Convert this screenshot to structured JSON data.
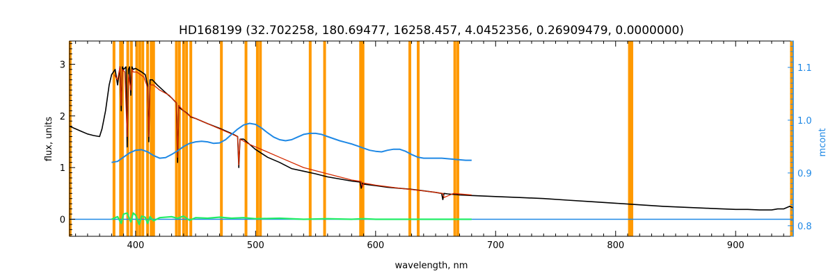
{
  "chart_data": {
    "type": "line",
    "title": "HD168199    (32.702258, 180.69477, 16258.457, 4.0452356, 0.26909479, 0.0000000)",
    "xlabel": "wavelength, nm",
    "ylabel": "flux, units",
    "y2label": "mcont",
    "xlim": [
      345,
      948
    ],
    "ylim": [
      -0.33,
      3.45
    ],
    "y2lim": [
      0.78,
      1.15
    ],
    "xticks": [
      400,
      500,
      600,
      700,
      800,
      900
    ],
    "yticks": [
      0,
      1,
      2,
      3
    ],
    "y2ticks": [
      0.8,
      0.9,
      1.0,
      1.1
    ],
    "grid": false,
    "colors": {
      "observed": "#000000",
      "model": "#d42a00",
      "mcont": "#1e88e5",
      "residual": "#22ee66",
      "mask": "#ff9900",
      "zero_line": "#1e88e5"
    },
    "mask_lines": [
      345.5,
      382,
      387.5,
      389,
      393.5,
      396.5,
      401,
      403.5,
      406,
      410,
      413,
      415,
      434,
      436.5,
      440,
      442.5,
      446,
      471.5,
      492,
      501.5,
      504,
      545.5,
      557.5,
      587.5,
      589.5,
      628.5,
      635.5,
      666,
      668.5,
      811.5,
      813.5,
      946.5
    ],
    "series": [
      {
        "key": "observed",
        "x": [
          345,
          350,
          355,
          360,
          365,
          370,
          372,
          375,
          378,
          380,
          383,
          385,
          387,
          388,
          389,
          390,
          392,
          393,
          394,
          395,
          396,
          397,
          398,
          400,
          403,
          405,
          408,
          410,
          411,
          412,
          414,
          418,
          425,
          430,
          434,
          435,
          436,
          437,
          440,
          443,
          446,
          450,
          460,
          470,
          480,
          485,
          486,
          487,
          490,
          495,
          500,
          510,
          520,
          530,
          540,
          550,
          560,
          570,
          580,
          587,
          588,
          589,
          590,
          600,
          610,
          620,
          630,
          640,
          650,
          655,
          656,
          657,
          660,
          670,
          680,
          700,
          720,
          740,
          760,
          780,
          800,
          820,
          840,
          860,
          880,
          900,
          910,
          920,
          930,
          935,
          940,
          945,
          948
        ],
        "y": [
          1.8,
          1.75,
          1.7,
          1.65,
          1.62,
          1.6,
          1.75,
          2.1,
          2.6,
          2.8,
          2.9,
          2.6,
          2.95,
          2.1,
          2.95,
          2.9,
          2.95,
          1.4,
          2.9,
          2.95,
          2.4,
          2.95,
          2.9,
          2.92,
          2.88,
          2.85,
          2.8,
          2.6,
          1.5,
          2.7,
          2.7,
          2.6,
          2.45,
          2.35,
          2.25,
          1.1,
          2.2,
          2.15,
          2.1,
          2.05,
          1.98,
          1.95,
          1.85,
          1.76,
          1.66,
          1.6,
          1.0,
          1.55,
          1.55,
          1.45,
          1.35,
          1.2,
          1.1,
          0.98,
          0.93,
          0.88,
          0.82,
          0.78,
          0.74,
          0.72,
          0.6,
          0.7,
          0.68,
          0.65,
          0.62,
          0.6,
          0.58,
          0.55,
          0.52,
          0.5,
          0.38,
          0.5,
          0.49,
          0.47,
          0.46,
          0.44,
          0.42,
          0.4,
          0.37,
          0.34,
          0.31,
          0.28,
          0.25,
          0.23,
          0.21,
          0.19,
          0.19,
          0.18,
          0.18,
          0.2,
          0.2,
          0.25,
          0.22
        ]
      },
      {
        "key": "model",
        "x": [
          382,
          385,
          387,
          388,
          389,
          391,
          393,
          394,
          396,
          397,
          398,
          401,
          404,
          407,
          410,
          411,
          412,
          415,
          420,
          428,
          434,
          435,
          436,
          440,
          445,
          450,
          460,
          470,
          480,
          485,
          486,
          487,
          495,
          505,
          520,
          540,
          560,
          580,
          588,
          589,
          590,
          600,
          620,
          640,
          650,
          656,
          657,
          665,
          675,
          680
        ],
        "y": [
          2.8,
          2.7,
          2.95,
          2.2,
          2.9,
          2.85,
          1.6,
          2.8,
          2.5,
          2.9,
          2.85,
          2.85,
          2.8,
          2.75,
          2.55,
          1.6,
          2.6,
          2.6,
          2.5,
          2.4,
          2.25,
          1.2,
          2.2,
          2.1,
          2.0,
          1.95,
          1.85,
          1.75,
          1.65,
          1.6,
          1.05,
          1.55,
          1.45,
          1.35,
          1.2,
          1.0,
          0.88,
          0.76,
          0.73,
          0.62,
          0.7,
          0.66,
          0.6,
          0.55,
          0.52,
          0.5,
          0.42,
          0.5,
          0.48,
          0.47
        ]
      },
      {
        "key": "mcont",
        "axis": "right",
        "x": [
          380,
          385,
          390,
          395,
          400,
          405,
          410,
          415,
          420,
          425,
          430,
          435,
          440,
          445,
          450,
          455,
          460,
          465,
          470,
          475,
          480,
          485,
          490,
          495,
          500,
          505,
          510,
          515,
          520,
          525,
          530,
          535,
          540,
          545,
          550,
          555,
          560,
          565,
          570,
          575,
          580,
          585,
          590,
          595,
          600,
          605,
          610,
          615,
          620,
          625,
          630,
          635,
          640,
          645,
          650,
          655,
          660,
          665,
          670,
          675,
          680
        ],
        "y": [
          0.92,
          0.922,
          0.93,
          0.938,
          0.943,
          0.944,
          0.94,
          0.933,
          0.928,
          0.929,
          0.935,
          0.942,
          0.95,
          0.956,
          0.959,
          0.96,
          0.959,
          0.956,
          0.957,
          0.963,
          0.973,
          0.983,
          0.991,
          0.994,
          0.992,
          0.985,
          0.976,
          0.968,
          0.963,
          0.961,
          0.963,
          0.968,
          0.973,
          0.975,
          0.975,
          0.973,
          0.969,
          0.965,
          0.961,
          0.958,
          0.955,
          0.951,
          0.947,
          0.943,
          0.941,
          0.94,
          0.943,
          0.945,
          0.945,
          0.941,
          0.935,
          0.93,
          0.928,
          0.928,
          0.928,
          0.928,
          0.927,
          0.926,
          0.925,
          0.924,
          0.924
        ]
      },
      {
        "key": "residual",
        "x": [
          380,
          385,
          388,
          390,
          393,
          396,
          398,
          400,
          403,
          405,
          408,
          410,
          412,
          415,
          420,
          430,
          435,
          440,
          445,
          450,
          460,
          470,
          480,
          490,
          495,
          500,
          520,
          540,
          560,
          580,
          590,
          600,
          620,
          640,
          660,
          680
        ],
        "y": [
          0.0,
          0.05,
          -0.08,
          0.1,
          0.12,
          -0.05,
          0.12,
          0.08,
          -0.1,
          0.06,
          0.04,
          -0.08,
          0.05,
          -0.03,
          0.03,
          0.05,
          0.02,
          0.06,
          -0.02,
          0.03,
          0.02,
          0.04,
          0.02,
          0.03,
          0.02,
          0.01,
          0.02,
          0.0,
          0.01,
          0.0,
          0.01,
          0.0,
          0.0,
          0.0,
          0.0,
          0.0
        ]
      }
    ]
  }
}
